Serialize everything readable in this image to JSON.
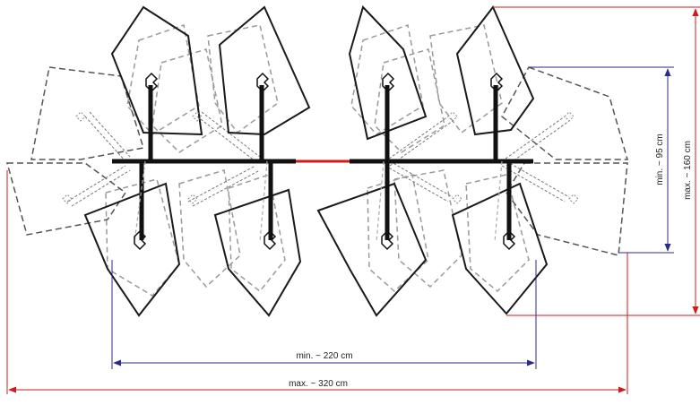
{
  "dimensions": {
    "min_width": "min. ~ 220 cm",
    "max_width": "max. ~ 320 cm",
    "min_height": "min. ~ 95 cm",
    "max_height": "max. ~ 160 cm"
  },
  "colors": {
    "solid": "#1a1a1a",
    "ghost_gray": "#9a9a9a",
    "ghost_dark": "#555555",
    "blue_dim": "#2b2a86",
    "red_dim": "#d01a1a",
    "boom": "#111111"
  }
}
